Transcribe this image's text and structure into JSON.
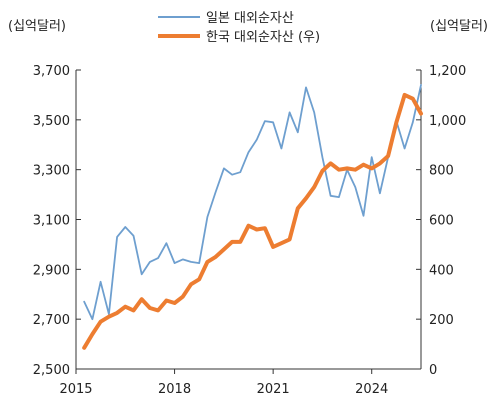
{
  "chart_data": {
    "type": "line",
    "left_axis": {
      "unit_label": "(십억달러)",
      "ylim": [
        2500,
        3700
      ],
      "ticks": [
        2500,
        2700,
        2900,
        3100,
        3300,
        3500,
        3700
      ],
      "tick_labels": [
        "2,500",
        "2,700",
        "2,900",
        "3,100",
        "3,300",
        "3,500",
        "3,700"
      ]
    },
    "right_axis": {
      "unit_label": "(십억달러)",
      "ylim": [
        0,
        1200
      ],
      "ticks": [
        0,
        200,
        400,
        600,
        800,
        1000,
        1200
      ],
      "tick_labels": [
        "0",
        "200",
        "400",
        "600",
        "800",
        "1,000",
        "1,200"
      ]
    },
    "x_axis": {
      "xlim": [
        2015.0,
        2025.5
      ],
      "ticks": [
        2015,
        2018,
        2021,
        2024
      ],
      "tick_labels": [
        "2015",
        "2018",
        "2021",
        "2024"
      ]
    },
    "legend": {
      "position": "top-center"
    },
    "series": [
      {
        "name": "일본 대외순자산",
        "axis": "left",
        "color": "#6e9fcf",
        "x": [
          2015.25,
          2015.5,
          2015.75,
          2016.0,
          2016.25,
          2016.5,
          2016.75,
          2017.0,
          2017.25,
          2017.5,
          2017.75,
          2018.0,
          2018.25,
          2018.5,
          2018.75,
          2019.0,
          2019.25,
          2019.5,
          2019.75,
          2020.0,
          2020.25,
          2020.5,
          2020.75,
          2021.0,
          2021.25,
          2021.5,
          2021.75,
          2022.0,
          2022.25,
          2022.5,
          2022.75,
          2023.0,
          2023.25,
          2023.5,
          2023.75,
          2024.0,
          2024.25,
          2024.5,
          2024.75,
          2025.0,
          2025.25,
          2025.5
        ],
        "values": [
          2770,
          2700,
          2850,
          2720,
          3030,
          3070,
          3035,
          2880,
          2930,
          2945,
          3005,
          2925,
          2940,
          2930,
          2925,
          3110,
          3210,
          3305,
          3280,
          3290,
          3370,
          3420,
          3495,
          3490,
          3385,
          3530,
          3450,
          3630,
          3530,
          3350,
          3195,
          3190,
          3300,
          3230,
          3115,
          3350,
          3205,
          3350,
          3495,
          3385,
          3490,
          3640
        ]
      },
      {
        "name": "한국 대외순자산 (우)",
        "axis": "right",
        "color": "#ed7d31",
        "x": [
          2015.25,
          2015.5,
          2015.75,
          2016.0,
          2016.25,
          2016.5,
          2016.75,
          2017.0,
          2017.25,
          2017.5,
          2017.75,
          2018.0,
          2018.25,
          2018.5,
          2018.75,
          2019.0,
          2019.25,
          2019.5,
          2019.75,
          2020.0,
          2020.25,
          2020.5,
          2020.75,
          2021.0,
          2021.25,
          2021.5,
          2021.75,
          2022.0,
          2022.25,
          2022.5,
          2022.75,
          2023.0,
          2023.25,
          2023.5,
          2023.75,
          2024.0,
          2024.25,
          2024.5,
          2024.75,
          2025.0,
          2025.25,
          2025.5
        ],
        "values": [
          85,
          140,
          190,
          210,
          225,
          250,
          235,
          280,
          245,
          235,
          275,
          265,
          290,
          340,
          360,
          430,
          450,
          480,
          510,
          510,
          575,
          560,
          565,
          490,
          505,
          520,
          645,
          685,
          730,
          795,
          825,
          800,
          805,
          800,
          820,
          805,
          825,
          855,
          990,
          1100,
          1085,
          1025
        ]
      }
    ]
  }
}
